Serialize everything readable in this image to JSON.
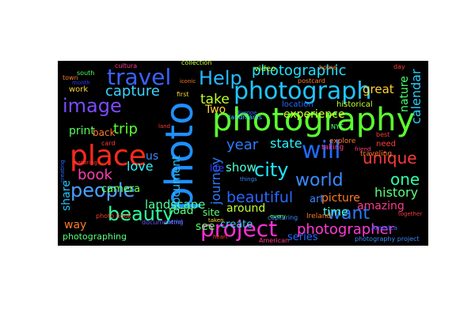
{
  "wordcloud": {
    "background": "#000000",
    "words": [
      {
        "text": "photography",
        "color": "#5bff2f"
      },
      {
        "text": "photo",
        "color": "#1e90ff"
      },
      {
        "text": "place",
        "color": "#ff2a1a"
      },
      {
        "text": "photograph",
        "color": "#1fc6ff"
      },
      {
        "text": "travel",
        "color": "#3a62ff"
      },
      {
        "text": "will",
        "color": "#1f6bff"
      },
      {
        "text": "people",
        "color": "#4aa0ff"
      },
      {
        "text": "project",
        "color": "#ff2fd8"
      },
      {
        "text": "image",
        "color": "#7a4bff"
      },
      {
        "text": "city",
        "color": "#1ee6ff"
      },
      {
        "text": "beauty",
        "color": "#2fff9a"
      },
      {
        "text": "photographic",
        "color": "#20e0ff"
      },
      {
        "text": "Help",
        "color": "#26b8ff"
      },
      {
        "text": "world",
        "color": "#3a8bff"
      },
      {
        "text": "want",
        "color": "#2a7bff"
      },
      {
        "text": "beautiful",
        "color": "#2a68ff"
      },
      {
        "text": "unique",
        "color": "#ff3a3a"
      },
      {
        "text": "photographer",
        "color": "#ff3bd6"
      },
      {
        "text": "capture",
        "color": "#3ad4ff"
      },
      {
        "text": "journey",
        "color": "#2e7cff"
      },
      {
        "text": "book",
        "color": "#ff3fb0"
      },
      {
        "text": "trip",
        "color": "#5bff2f"
      },
      {
        "text": "calendar",
        "color": "#22d0ff"
      },
      {
        "text": "love",
        "color": "#2ff6ff"
      },
      {
        "text": "share",
        "color": "#26c6ff"
      },
      {
        "text": "one",
        "color": "#2fffa8"
      },
      {
        "text": "year",
        "color": "#2f7bff"
      },
      {
        "text": "state",
        "color": "#2ff2ff"
      },
      {
        "text": "document",
        "color": "#2bc2ff"
      },
      {
        "text": "landscape",
        "color": "#4fff9a"
      },
      {
        "text": "take",
        "color": "#c0ff2f"
      },
      {
        "text": "show",
        "color": "#4fffd8"
      },
      {
        "text": "history",
        "color": "#5cff7a"
      },
      {
        "text": "experience",
        "color": "#c8ff2f"
      },
      {
        "text": "nature",
        "color": "#4aff6a"
      },
      {
        "text": "great",
        "color": "#ffd23a"
      },
      {
        "text": "camera",
        "color": "#6aff4a"
      },
      {
        "text": "around",
        "color": "#c0ff3a"
      },
      {
        "text": "amazing",
        "color": "#ff3a8a"
      },
      {
        "text": "picture",
        "color": "#ff7a2a"
      },
      {
        "text": "art",
        "color": "#3a8aff"
      },
      {
        "text": "time",
        "color": "#4fffe0"
      },
      {
        "text": "road",
        "color": "#5aff7a"
      },
      {
        "text": "print",
        "color": "#4fff5a"
      },
      {
        "text": "see",
        "color": "#4fff5a"
      },
      {
        "text": "Two",
        "color": "#ffd23a"
      },
      {
        "text": "us",
        "color": "#3a8aff"
      },
      {
        "text": "way",
        "color": "#ff7a2a"
      },
      {
        "text": "photographing",
        "color": "#5aff7a"
      },
      {
        "text": "create",
        "color": "#3ad4ff"
      },
      {
        "text": "series",
        "color": "#1f6bff"
      },
      {
        "text": "site",
        "color": "#5aff7a"
      },
      {
        "text": "life",
        "color": "#2a3aff"
      },
      {
        "text": "video",
        "color": "#c0ff2f"
      },
      {
        "text": "historical",
        "color": "#c8ff2f"
      },
      {
        "text": "location",
        "color": "#2a6aff"
      },
      {
        "text": "work",
        "color": "#ffd23a"
      },
      {
        "text": "need",
        "color": "#ff3a3a"
      },
      {
        "text": "explore",
        "color": "#ff7a2a"
      },
      {
        "text": "Ireland",
        "color": "#ff7a2a"
      },
      {
        "text": "taking",
        "color": "#ff3a8a"
      },
      {
        "text": "traveling",
        "color": "#ff7a2a"
      },
      {
        "text": "photo book",
        "color": "#ff3a3a"
      },
      {
        "text": "documenting",
        "color": "#7a4bff"
      },
      {
        "text": "capturing",
        "color": "#3a8aff"
      },
      {
        "text": "American",
        "color": "#ff3a8a"
      },
      {
        "text": "photography project",
        "color": "#3a8aff"
      },
      {
        "text": "America",
        "color": "#2a6aff"
      },
      {
        "text": "collection",
        "color": "#c0ff2f"
      },
      {
        "text": "cultura",
        "color": "#ff3a8a"
      },
      {
        "text": "south",
        "color": "#4fff5a"
      },
      {
        "text": "iconic",
        "color": "#ff7a2a"
      },
      {
        "text": "first",
        "color": "#ffd23a"
      },
      {
        "text": "home",
        "color": "#ff7a2a"
      },
      {
        "text": "postcard",
        "color": "#ff7a2a"
      },
      {
        "text": "day",
        "color": "#ff3a3a"
      },
      {
        "text": "best",
        "color": "#ff3a3a"
      },
      {
        "text": "landmarks",
        "color": "#3ad4ff"
      },
      {
        "text": "Europe",
        "color": "#2a6aff"
      },
      {
        "text": "NYC",
        "color": "#5aff7a"
      },
      {
        "text": "featuring",
        "color": "#ff3a3a"
      },
      {
        "text": "town",
        "color": "#ff7a2a"
      },
      {
        "text": "month",
        "color": "#2a3aff"
      },
      {
        "text": "card",
        "color": "#ff3a3a"
      },
      {
        "text": "back",
        "color": "#ff7a2a"
      },
      {
        "text": "land",
        "color": "#ff3a3a"
      },
      {
        "text": "things",
        "color": "#3a8aff"
      },
      {
        "text": "every",
        "color": "#5aff7a"
      },
      {
        "text": "creating",
        "color": "#2a6aff"
      },
      {
        "text": "taken",
        "color": "#ffd23a"
      },
      {
        "text": "aerial",
        "color": "#3a8aff"
      },
      {
        "text": "together",
        "color": "#ff3a3a"
      },
      {
        "text": "friend",
        "color": "#ff3a8a"
      },
      {
        "text": "heart",
        "color": "#ff3a3a"
      }
    ]
  }
}
